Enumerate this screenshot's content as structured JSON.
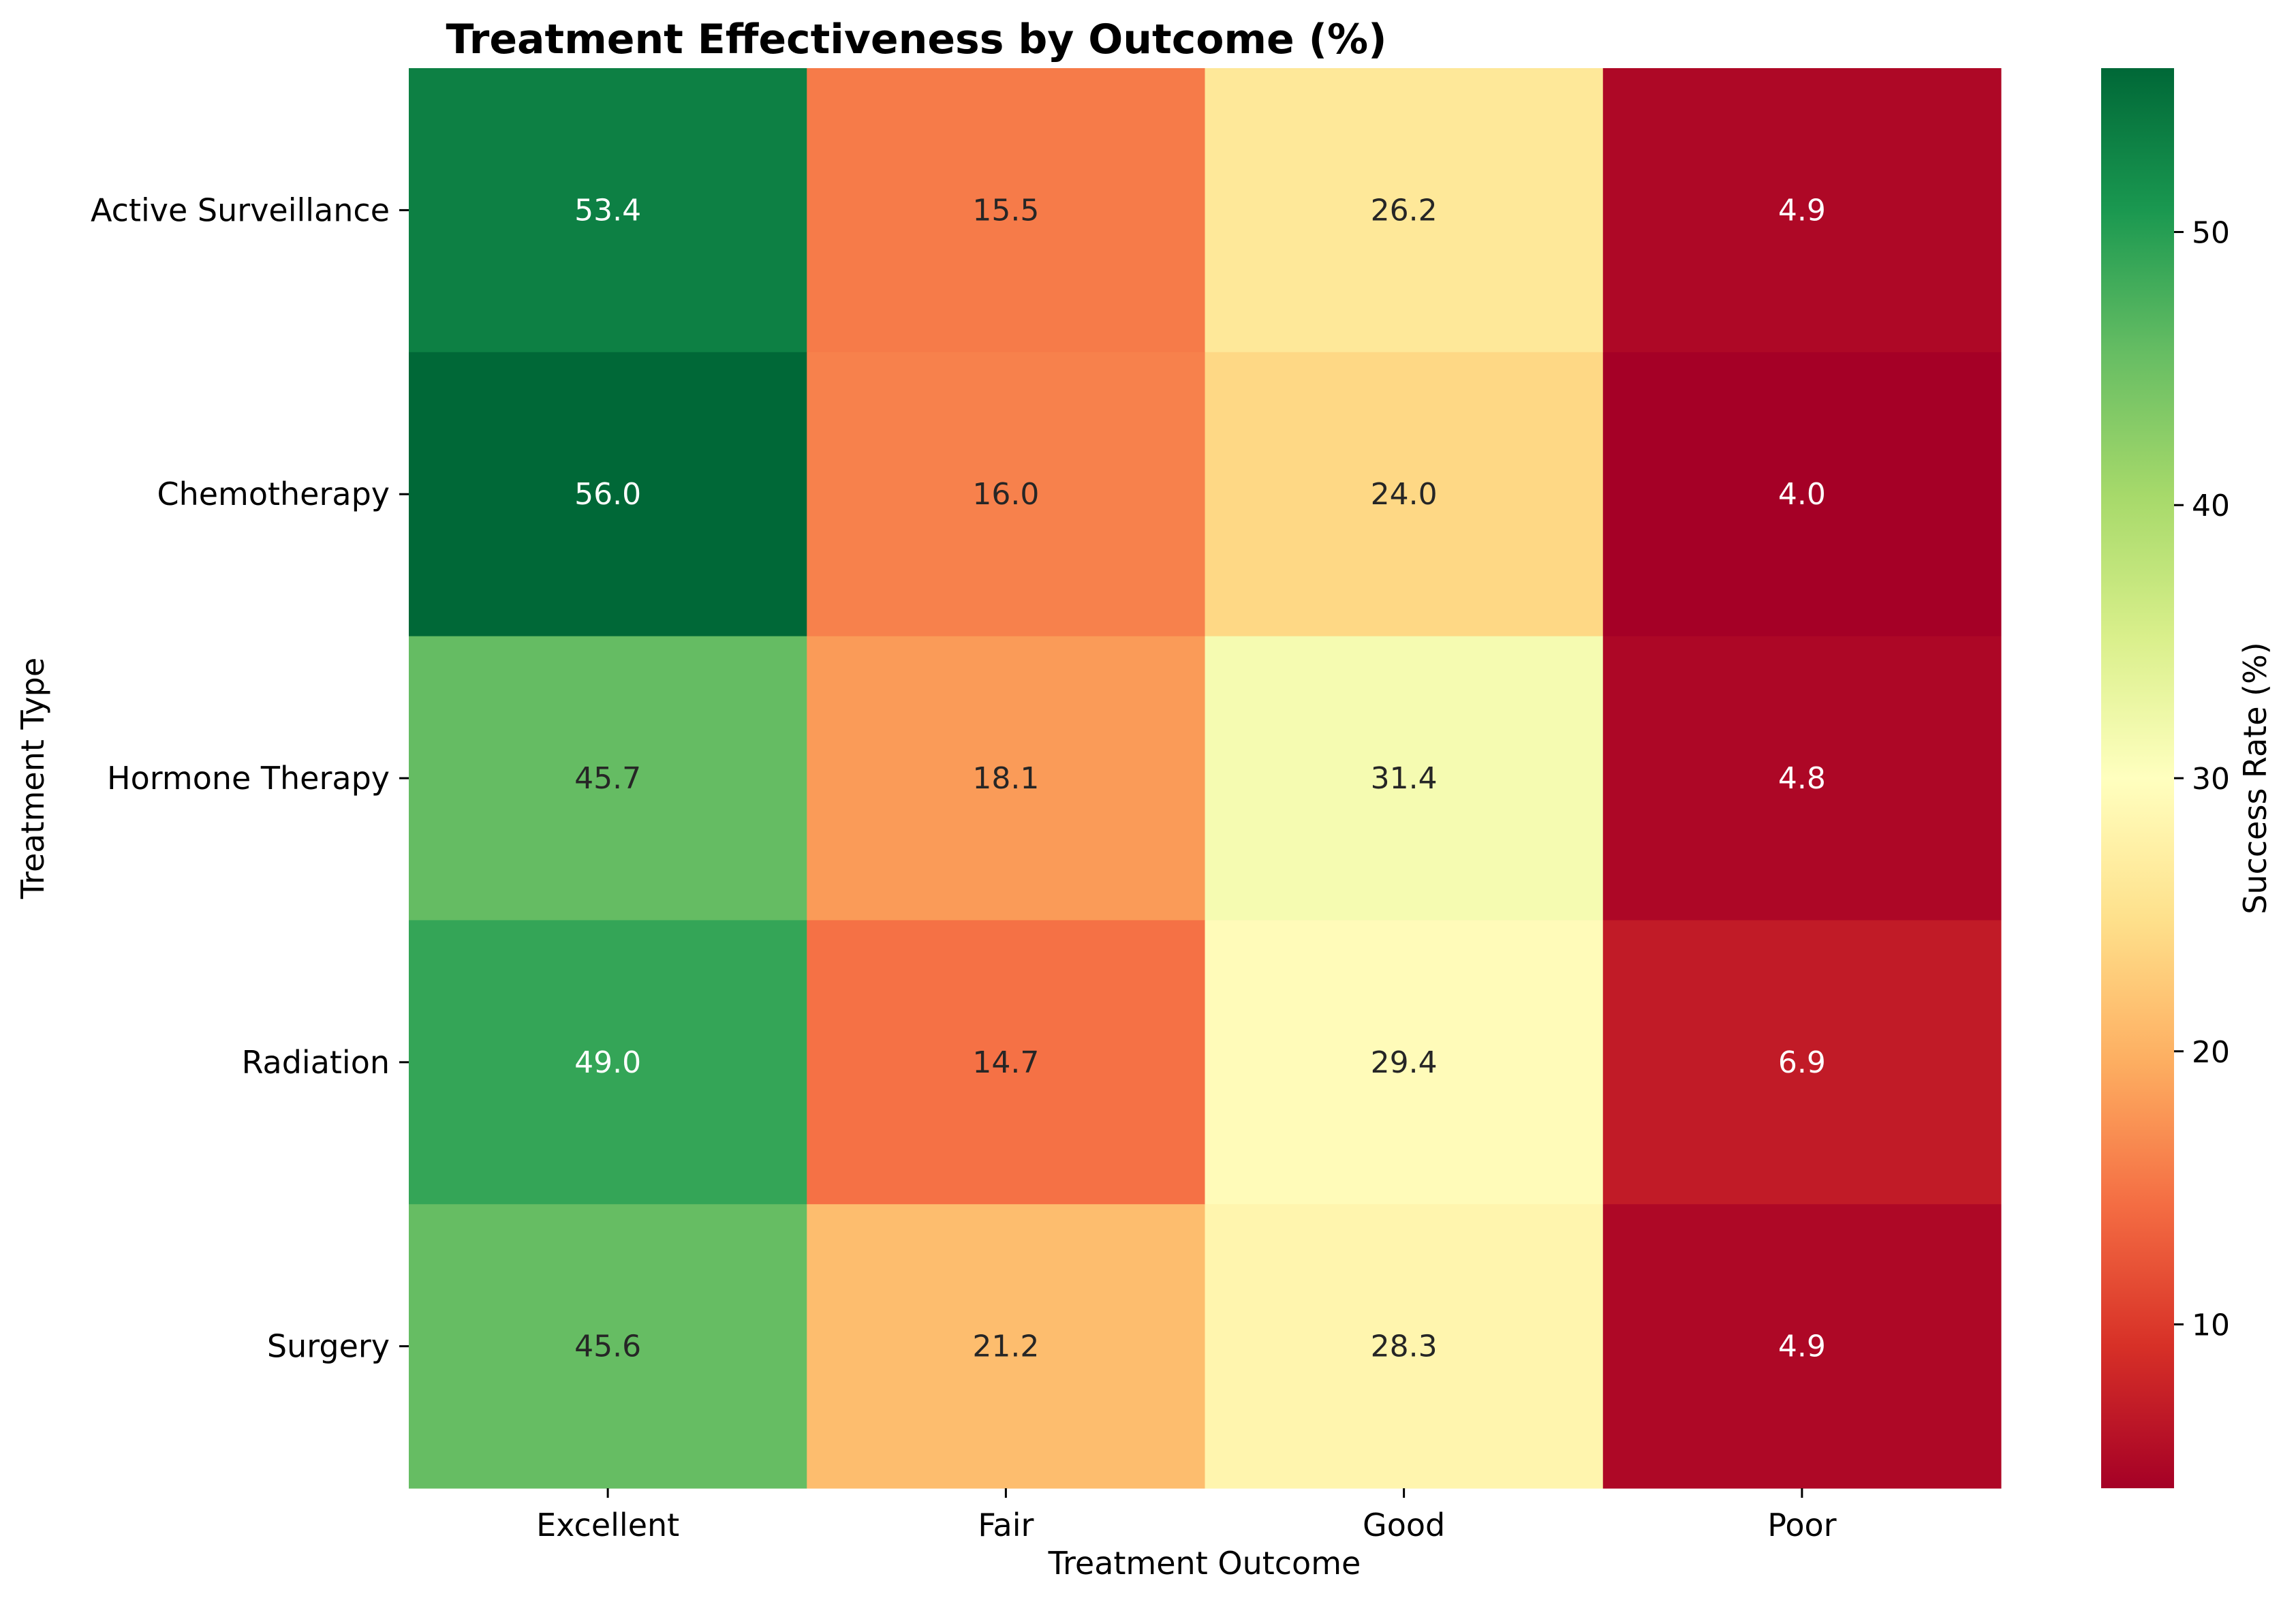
{
  "chart_data": {
    "type": "heatmap",
    "title": "Treatment Effectiveness by Outcome (%)",
    "xlabel": "Treatment Outcome",
    "ylabel": "Treatment Type",
    "x_categories": [
      "Excellent",
      "Fair",
      "Good",
      "Poor"
    ],
    "y_categories": [
      "Active Surveillance",
      "Chemotherapy",
      "Hormone Therapy",
      "Radiation",
      "Surgery"
    ],
    "values": [
      [
        53.4,
        15.5,
        26.2,
        4.9
      ],
      [
        56.0,
        16.0,
        24.0,
        4.0
      ],
      [
        45.7,
        18.1,
        31.4,
        4.8
      ],
      [
        49.0,
        14.7,
        29.4,
        6.9
      ],
      [
        45.6,
        21.2,
        28.3,
        4.9
      ]
    ],
    "colorbar": {
      "label": "Success Rate (%)",
      "colormap": "RdYlGn",
      "range": [
        4.0,
        56.0
      ],
      "ticks": [
        10,
        20,
        30,
        40,
        50
      ]
    }
  }
}
